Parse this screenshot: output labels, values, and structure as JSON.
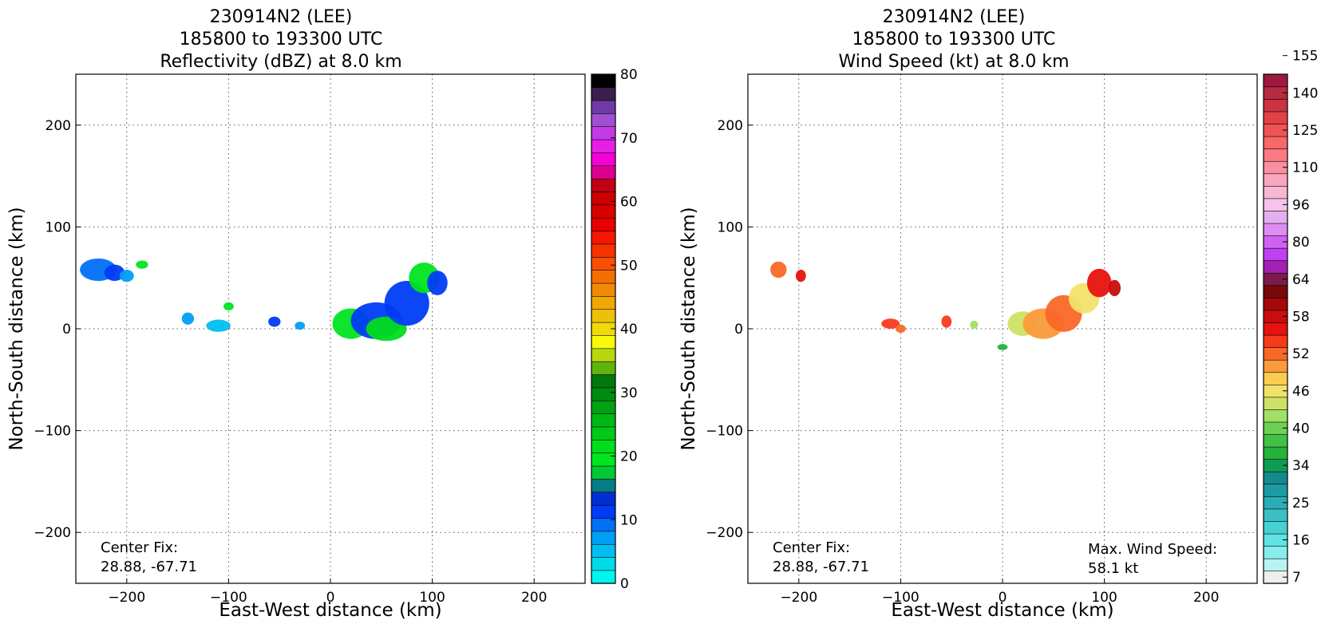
{
  "chart_data": [
    {
      "type": "heatmap",
      "title_lines": [
        "230914N2 (LEE)",
        "185800 to 193300 UTC",
        "Reflectivity (dBZ) at 8.0 km"
      ],
      "xlabel": "East-West distance (km)",
      "ylabel": "North-South distance (km)",
      "xlim": [
        -250,
        250
      ],
      "ylim": [
        -250,
        250
      ],
      "xticks": [
        -200,
        -100,
        0,
        100,
        200
      ],
      "yticks": [
        -200,
        -100,
        0,
        100,
        200
      ],
      "grid": true,
      "colorbar": {
        "min": 0,
        "max": 80,
        "tick_values": [
          0,
          10,
          20,
          30,
          40,
          50,
          60,
          70,
          80
        ],
        "tick_labels": [
          "0",
          "10",
          "20",
          "30",
          "40",
          "50",
          "60",
          "70",
          "80"
        ],
        "colors": [
          "#00f5ef",
          "#00dbe8",
          "#00bff0",
          "#009ff5",
          "#0070f8",
          "#003cf5",
          "#0030d2",
          "#077c86",
          "#00c934",
          "#00e51f",
          "#00dd1c",
          "#00ca16",
          "#00b814",
          "#00a211",
          "#008b0e",
          "#00780b",
          "#60b40e",
          "#b7d80f",
          "#f9f90a",
          "#f0db09",
          "#ecc108",
          "#f0a806",
          "#f18b05",
          "#f56e03",
          "#f75002",
          "#f73201",
          "#f41800",
          "#e80000",
          "#d90000",
          "#cc0000",
          "#c10014",
          "#dc0090",
          "#f500d7",
          "#e61ee6",
          "#c23be6",
          "#a04fd2",
          "#6f3aa3",
          "#3a1e4b",
          "#000000"
        ]
      },
      "center_fix_label": "Center Fix:",
      "center_fix_value": "28.88, -67.71",
      "echo_regions": [
        {
          "cx": -228,
          "cy": 58,
          "rx": 18,
          "ry": 11,
          "value": 9
        },
        {
          "cx": -212,
          "cy": 55,
          "rx": 10,
          "ry": 8,
          "value": 11
        },
        {
          "cx": -200,
          "cy": 52,
          "rx": 7,
          "ry": 6,
          "value": 8
        },
        {
          "cx": -185,
          "cy": 63,
          "rx": 6,
          "ry": 4,
          "value": 20
        },
        {
          "cx": -140,
          "cy": 10,
          "rx": 6,
          "ry": 6,
          "value": 7
        },
        {
          "cx": -110,
          "cy": 3,
          "rx": 12,
          "ry": 6,
          "value": 5
        },
        {
          "cx": -100,
          "cy": 22,
          "rx": 5,
          "ry": 4,
          "value": 19
        },
        {
          "cx": -55,
          "cy": 7,
          "rx": 6,
          "ry": 5,
          "value": 11
        },
        {
          "cx": -30,
          "cy": 3,
          "rx": 5,
          "ry": 4,
          "value": 7
        },
        {
          "cx": 20,
          "cy": 5,
          "rx": 18,
          "ry": 15,
          "value": 20
        },
        {
          "cx": 45,
          "cy": 8,
          "rx": 25,
          "ry": 18,
          "value": 12
        },
        {
          "cx": 55,
          "cy": 0,
          "rx": 20,
          "ry": 12,
          "value": 22
        },
        {
          "cx": 75,
          "cy": 25,
          "rx": 22,
          "ry": 22,
          "value": 11
        },
        {
          "cx": 92,
          "cy": 50,
          "rx": 15,
          "ry": 15,
          "value": 19
        },
        {
          "cx": 105,
          "cy": 45,
          "rx": 10,
          "ry": 12,
          "value": 12
        }
      ]
    },
    {
      "type": "heatmap",
      "title_lines": [
        "230914N2 (LEE)",
        "185800 to 193300 UTC",
        "Wind Speed (kt) at 8.0 km"
      ],
      "xlabel": "East-West distance (km)",
      "ylabel": "North-South distance (km)",
      "xlim": [
        -250,
        250
      ],
      "ylim": [
        -250,
        250
      ],
      "xticks": [
        -200,
        -100,
        0,
        100,
        200
      ],
      "yticks": [
        -200,
        -100,
        0,
        100,
        200
      ],
      "grid": true,
      "colorbar": {
        "tick_labels": [
          "7",
          "16",
          "25",
          "34",
          "40",
          "46",
          "52",
          "58",
          "64",
          "80",
          "96",
          "110",
          "125",
          "140",
          "155"
        ],
        "tick_index": [
          0,
          3,
          6,
          9,
          12,
          15,
          18,
          21,
          24,
          27,
          30,
          33,
          36,
          39,
          42
        ],
        "colors": [
          "#eeeeee",
          "#b9f2f2",
          "#86eeee",
          "#5fe3e3",
          "#46d2d2",
          "#3bbfc3",
          "#2aaeb4",
          "#1d9ba3",
          "#148a8e",
          "#0f9c52",
          "#25b23b",
          "#43c146",
          "#6cd054",
          "#a0e066",
          "#cfe066",
          "#f3e26a",
          "#f9cc52",
          "#fb9a3a",
          "#fa6828",
          "#f83a1c",
          "#e8120e",
          "#c80d0d",
          "#a40808",
          "#7a0707",
          "#7d1a4d",
          "#a41fb5",
          "#c03ff0",
          "#d062f2",
          "#dc8cf2",
          "#e4aef0",
          "#f4c4ea",
          "#f6b8d3",
          "#f9a6bd",
          "#f98f9f",
          "#f97a82",
          "#f8686a",
          "#f05255",
          "#e24045",
          "#cb3340",
          "#b72a3f",
          "#9d1a3e"
        ]
      },
      "center_fix_label": "Center Fix:",
      "center_fix_value": "28.88, -67.71",
      "max_wind_label": "Max. Wind Speed:",
      "max_wind_value": "58.1 kt",
      "echo_regions": [
        {
          "cx": -220,
          "cy": 58,
          "rx": 8,
          "ry": 8,
          "value": 52
        },
        {
          "cx": -198,
          "cy": 52,
          "rx": 5,
          "ry": 6,
          "value": 56
        },
        {
          "cx": -110,
          "cy": 5,
          "rx": 9,
          "ry": 5,
          "value": 54
        },
        {
          "cx": -100,
          "cy": 0,
          "rx": 5,
          "ry": 4,
          "value": 52
        },
        {
          "cx": -55,
          "cy": 7,
          "rx": 5,
          "ry": 6,
          "value": 54
        },
        {
          "cx": -28,
          "cy": 4,
          "rx": 4,
          "ry": 4,
          "value": 42
        },
        {
          "cx": 20,
          "cy": 5,
          "rx": 15,
          "ry": 12,
          "value": 44
        },
        {
          "cx": 40,
          "cy": 5,
          "rx": 20,
          "ry": 15,
          "value": 50
        },
        {
          "cx": 60,
          "cy": 15,
          "rx": 18,
          "ry": 18,
          "value": 52
        },
        {
          "cx": 80,
          "cy": 30,
          "rx": 15,
          "ry": 15,
          "value": 45
        },
        {
          "cx": 95,
          "cy": 45,
          "rx": 12,
          "ry": 14,
          "value": 56
        },
        {
          "cx": 110,
          "cy": 40,
          "rx": 6,
          "ry": 8,
          "value": 58
        },
        {
          "cx": 0,
          "cy": -18,
          "rx": 5,
          "ry": 3,
          "value": 35
        }
      ]
    }
  ]
}
